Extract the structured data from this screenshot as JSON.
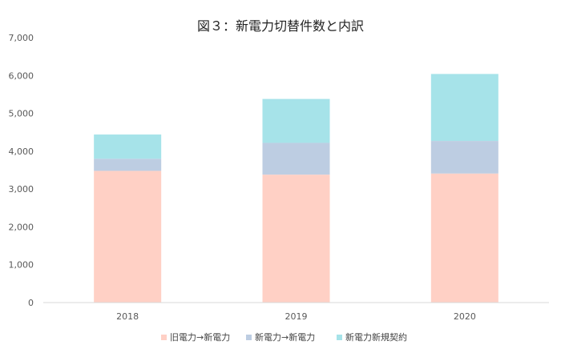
{
  "chart_data": {
    "type": "bar",
    "stacked": true,
    "title": "図３：新電力切替件数と内訳",
    "xlabel": "",
    "ylabel": "",
    "categories": [
      "2018",
      "2019",
      "2020"
    ],
    "ylim": [
      0,
      7000
    ],
    "yticks": [
      0,
      1000,
      2000,
      3000,
      4000,
      5000,
      6000,
      7000
    ],
    "ytick_labels": [
      "0",
      "1,000",
      "2,000",
      "3,000",
      "4,000",
      "5,000",
      "6,000",
      "7,000"
    ],
    "grid": false,
    "legend_position": "bottom",
    "series": [
      {
        "name": "旧電力→新電力",
        "values": [
          3480,
          3380,
          3410
        ],
        "color": "#FFD0C5"
      },
      {
        "name": "新電力→新電力",
        "values": [
          320,
          840,
          860
        ],
        "color": "#BDCDE2"
      },
      {
        "name": "新電力新規契約",
        "values": [
          640,
          1160,
          1770
        ],
        "color": "#A6E3E9"
      }
    ]
  }
}
